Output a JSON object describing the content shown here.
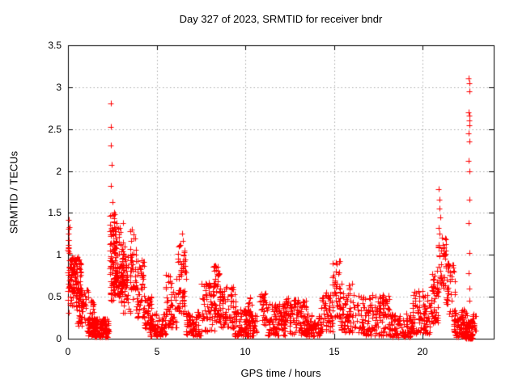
{
  "chart_data": {
    "type": "scatter",
    "title": "Day 327 of 2023, SRMTID for receiver bndr",
    "xlabel": "GPS time / hours",
    "ylabel": "SRMTID / TECUs",
    "xlim": [
      0,
      24
    ],
    "ylim": [
      0,
      3.5
    ],
    "xticks": [
      0,
      5,
      10,
      15,
      20
    ],
    "yticks": [
      0,
      0.5,
      1,
      1.5,
      2,
      2.5,
      3,
      3.5
    ],
    "grid": true,
    "legend": "none",
    "marker": "plus-cross",
    "marker_color": "#ff0000",
    "grid_color": "#aaaaaa",
    "border_color": "#000000",
    "clusters": [
      {
        "x0": 0.0,
        "x1": 0.12,
        "y0": 0.3,
        "y1": 1.45,
        "n": 22,
        "p": 1.2
      },
      {
        "x0": 0.1,
        "x1": 0.75,
        "y0": 0.3,
        "y1": 0.98,
        "n": 110,
        "p": 0.6
      },
      {
        "x0": 0.55,
        "x1": 1.15,
        "y0": 0.15,
        "y1": 0.6,
        "n": 55,
        "p": 1.1
      },
      {
        "x0": 1.1,
        "x1": 2.35,
        "y0": 0.02,
        "y1": 0.24,
        "n": 170,
        "p": 1.2
      },
      {
        "x0": 1.25,
        "x1": 1.5,
        "y0": 0.22,
        "y1": 0.46,
        "n": 14,
        "p": 1.0
      },
      {
        "x0": 2.35,
        "x1": 2.7,
        "y0": 0.45,
        "y1": 1.52,
        "n": 75,
        "p": 1.0
      },
      {
        "x0": 2.6,
        "x1": 3.2,
        "y0": 0.5,
        "y1": 1.4,
        "n": 95,
        "p": 1.1
      },
      {
        "x0": 3.0,
        "x1": 3.55,
        "y0": 0.3,
        "y1": 1.0,
        "n": 50,
        "p": 1.1
      },
      {
        "x0": 3.5,
        "x1": 3.85,
        "y0": 0.45,
        "y1": 1.32,
        "n": 35,
        "p": 1.0
      },
      {
        "x0": 3.8,
        "x1": 4.35,
        "y0": 0.25,
        "y1": 0.95,
        "n": 50,
        "p": 1.3
      },
      {
        "x0": 4.3,
        "x1": 4.75,
        "y0": 0.1,
        "y1": 0.5,
        "n": 40,
        "p": 1.2
      },
      {
        "x0": 4.6,
        "x1": 5.55,
        "y0": 0.03,
        "y1": 0.3,
        "n": 85,
        "p": 1.3
      },
      {
        "x0": 5.5,
        "x1": 6.15,
        "y0": 0.12,
        "y1": 0.77,
        "n": 55,
        "p": 1.3
      },
      {
        "x0": 6.2,
        "x1": 6.65,
        "y0": 0.3,
        "y1": 1.12,
        "n": 60,
        "p": 1.1
      },
      {
        "x0": 6.65,
        "x1": 7.5,
        "y0": 0.03,
        "y1": 0.32,
        "n": 75,
        "p": 1.2
      },
      {
        "x0": 7.5,
        "x1": 8.25,
        "y0": 0.08,
        "y1": 0.68,
        "n": 65,
        "p": 1.3
      },
      {
        "x0": 8.2,
        "x1": 8.6,
        "y0": 0.2,
        "y1": 0.87,
        "n": 45,
        "p": 1.3
      },
      {
        "x0": 8.55,
        "x1": 9.45,
        "y0": 0.12,
        "y1": 0.62,
        "n": 75,
        "p": 1.2
      },
      {
        "x0": 9.4,
        "x1": 10.65,
        "y0": 0.03,
        "y1": 0.35,
        "n": 115,
        "p": 1.3
      },
      {
        "x0": 10.0,
        "x1": 10.35,
        "y0": 0.18,
        "y1": 0.5,
        "n": 18,
        "p": 1.0
      },
      {
        "x0": 10.8,
        "x1": 11.2,
        "y0": 0.12,
        "y1": 0.56,
        "n": 28,
        "p": 1.1
      },
      {
        "x0": 11.2,
        "x1": 12.25,
        "y0": 0.04,
        "y1": 0.42,
        "n": 95,
        "p": 1.3
      },
      {
        "x0": 12.2,
        "x1": 12.55,
        "y0": 0.15,
        "y1": 0.52,
        "n": 25,
        "p": 1.0
      },
      {
        "x0": 12.5,
        "x1": 13.45,
        "y0": 0.05,
        "y1": 0.47,
        "n": 90,
        "p": 1.3
      },
      {
        "x0": 13.4,
        "x1": 14.25,
        "y0": 0.03,
        "y1": 0.32,
        "n": 75,
        "p": 1.3
      },
      {
        "x0": 14.2,
        "x1": 14.95,
        "y0": 0.08,
        "y1": 0.56,
        "n": 60,
        "p": 1.2
      },
      {
        "x0": 14.9,
        "x1": 15.35,
        "y0": 0.25,
        "y1": 0.93,
        "n": 42,
        "p": 1.3
      },
      {
        "x0": 15.3,
        "x1": 16.5,
        "y0": 0.08,
        "y1": 0.66,
        "n": 85,
        "p": 1.4
      },
      {
        "x0": 16.5,
        "x1": 18.15,
        "y0": 0.04,
        "y1": 0.52,
        "n": 140,
        "p": 1.5
      },
      {
        "x0": 18.1,
        "x1": 19.45,
        "y0": 0.02,
        "y1": 0.3,
        "n": 105,
        "p": 1.3
      },
      {
        "x0": 19.4,
        "x1": 20.45,
        "y0": 0.06,
        "y1": 0.58,
        "n": 85,
        "p": 1.3
      },
      {
        "x0": 20.45,
        "x1": 20.95,
        "y0": 0.18,
        "y1": 0.82,
        "n": 48,
        "p": 1.2
      },
      {
        "x0": 20.85,
        "x1": 21.35,
        "y0": 0.6,
        "y1": 1.22,
        "n": 40,
        "p": 0.8
      },
      {
        "x0": 21.3,
        "x1": 21.8,
        "y0": 0.25,
        "y1": 0.92,
        "n": 40,
        "p": 1.2
      },
      {
        "x0": 21.75,
        "x1": 22.5,
        "y0": 0.02,
        "y1": 0.36,
        "n": 95,
        "p": 1.4
      },
      {
        "x0": 22.35,
        "x1": 22.8,
        "y0": 0.0,
        "y1": 0.22,
        "n": 55,
        "p": 1.2
      },
      {
        "x0": 22.7,
        "x1": 23.0,
        "y0": 0.04,
        "y1": 0.3,
        "n": 22,
        "p": 1.2
      }
    ],
    "outlier_points": [
      [
        0.03,
        1.42
      ],
      [
        0.05,
        1.25
      ],
      [
        0.04,
        1.18
      ],
      [
        0.07,
        1.02
      ],
      [
        2.42,
        2.81
      ],
      [
        2.44,
        2.53
      ],
      [
        2.43,
        2.3
      ],
      [
        2.45,
        2.07
      ],
      [
        2.44,
        1.82
      ],
      [
        2.5,
        1.63
      ],
      [
        2.62,
        1.5
      ],
      [
        3.62,
        1.3
      ],
      [
        6.45,
        1.25
      ],
      [
        6.48,
        1.17
      ],
      [
        9.3,
        0.62
      ],
      [
        15.1,
        0.8
      ],
      [
        15.28,
        0.79
      ],
      [
        20.9,
        1.78
      ],
      [
        20.93,
        1.66
      ],
      [
        20.96,
        1.55
      ],
      [
        21.0,
        1.45
      ],
      [
        20.88,
        1.32
      ],
      [
        20.95,
        1.25
      ],
      [
        22.6,
        3.1
      ],
      [
        22.63,
        3.05
      ],
      [
        22.61,
        2.95
      ],
      [
        22.6,
        2.7
      ],
      [
        22.63,
        2.66
      ],
      [
        22.61,
        2.6
      ],
      [
        22.62,
        2.55
      ],
      [
        22.6,
        2.45
      ],
      [
        22.64,
        2.35
      ],
      [
        22.6,
        2.12
      ],
      [
        22.62,
        2.0
      ],
      [
        22.61,
        1.66
      ],
      [
        22.6,
        1.38
      ],
      [
        22.63,
        1.02
      ],
      [
        22.6,
        0.78
      ],
      [
        22.62,
        0.6
      ],
      [
        22.61,
        0.45
      ]
    ]
  }
}
